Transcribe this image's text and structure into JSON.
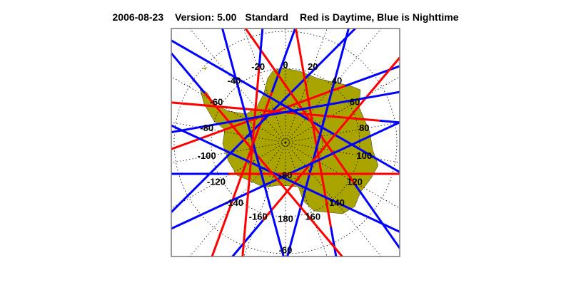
{
  "header": {
    "date": "2006-08-23",
    "version": "Version: 5.00",
    "mode": "Standard",
    "legend_text": "Red is Daytime, Blue is Nighttime"
  },
  "map": {
    "projection": "south polar stereographic",
    "region": "Antarctica",
    "land_color": "#aaa400",
    "day_color": "#ff0000",
    "night_color": "#0000ff",
    "grid": "dotted",
    "longitude_labels": [
      "0",
      "20",
      "40",
      "60",
      "80",
      "100",
      "120",
      "140",
      "160",
      "180",
      "-160",
      "-140",
      "-120",
      "-100",
      "-80",
      "-60",
      "-40",
      "-20"
    ],
    "latitude_labels": [
      "-80",
      "-60"
    ]
  }
}
